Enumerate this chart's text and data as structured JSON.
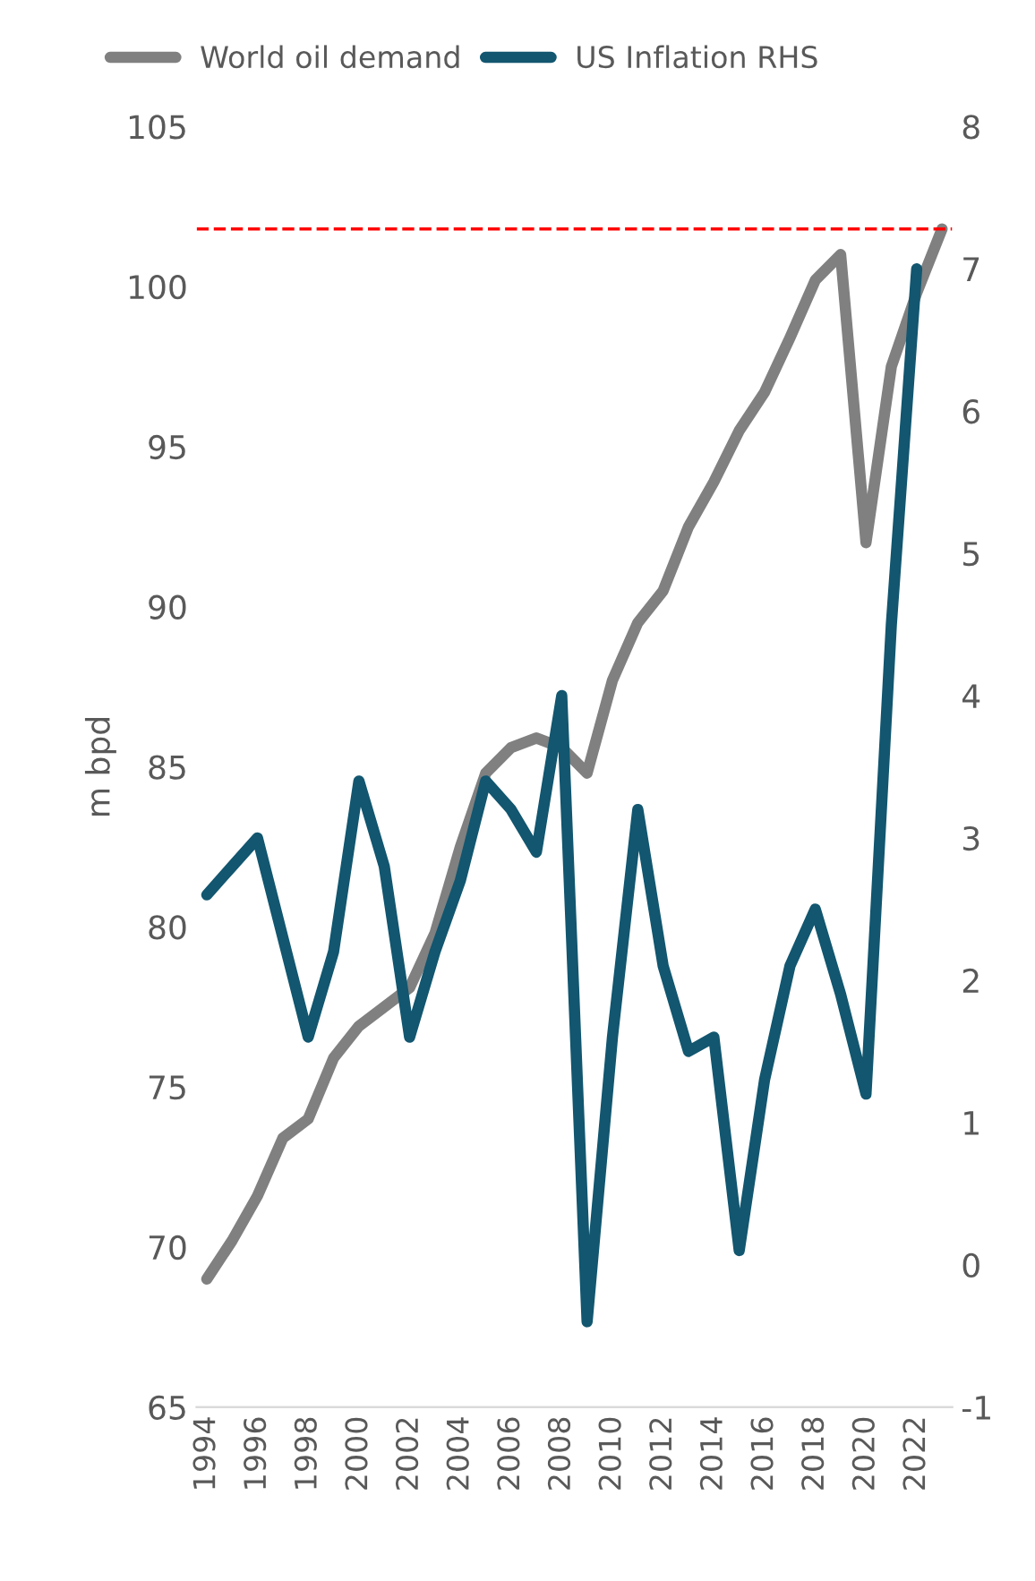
{
  "chart_data": {
    "type": "line",
    "ylabel": "m bpd",
    "legend": "top",
    "grid": false,
    "line_style": "solid",
    "marker": "none",
    "x": [
      1994,
      1995,
      1996,
      1997,
      1998,
      1999,
      2000,
      2001,
      2002,
      2003,
      2004,
      2005,
      2006,
      2007,
      2008,
      2009,
      2010,
      2011,
      2012,
      2013,
      2014,
      2015,
      2016,
      2017,
      2018,
      2019,
      2020,
      2021,
      2022,
      2023
    ],
    "xlim": [
      1993.6,
      2023.4
    ],
    "xticks": [
      1994,
      1996,
      1998,
      2000,
      2002,
      2004,
      2006,
      2008,
      2010,
      2012,
      2014,
      2016,
      2018,
      2020,
      2022
    ],
    "ylim": [
      65,
      105
    ],
    "yticks": [
      65,
      70,
      75,
      80,
      85,
      90,
      95,
      100,
      105
    ],
    "y2lim": [
      -1,
      8
    ],
    "y2ticks": [
      -1,
      0,
      1,
      2,
      3,
      4,
      5,
      6,
      7,
      8
    ],
    "series": [
      {
        "name": "World oil demand",
        "color": "#808080",
        "values": [
          69.0,
          70.2,
          71.6,
          73.4,
          74.0,
          75.9,
          76.9,
          77.5,
          78.1,
          79.8,
          82.5,
          84.8,
          85.6,
          85.9,
          85.6,
          84.8,
          87.7,
          89.5,
          90.5,
          92.5,
          93.9,
          95.5,
          96.7,
          98.4,
          100.2,
          101.0,
          92.0,
          97.5,
          99.8,
          101.8
        ]
      },
      {
        "name": "US Inflation RHS",
        "color": "#12566f",
        "axis": "y2",
        "x": [
          1994,
          1995,
          1996,
          1997,
          1998,
          1999,
          2000,
          2001,
          2002,
          2003,
          2004,
          2005,
          2006,
          2007,
          2008,
          2009,
          2010,
          2011,
          2012,
          2013,
          2014,
          2015,
          2016,
          2017,
          2018,
          2019,
          2020,
          2021,
          2022
        ],
        "values": [
          2.6,
          2.8,
          3.0,
          2.3,
          1.6,
          2.2,
          3.4,
          2.8,
          1.6,
          2.2,
          2.7,
          3.4,
          3.2,
          2.9,
          4.0,
          -0.4,
          1.6,
          3.2,
          2.1,
          1.5,
          1.6,
          0.1,
          1.3,
          2.1,
          2.5,
          1.9,
          1.2,
          4.5,
          7.0
        ]
      }
    ],
    "ref_lines": [
      {
        "axis": "y",
        "value": 101.8,
        "color": "#ff0000",
        "line_style": "dashed"
      }
    ]
  }
}
